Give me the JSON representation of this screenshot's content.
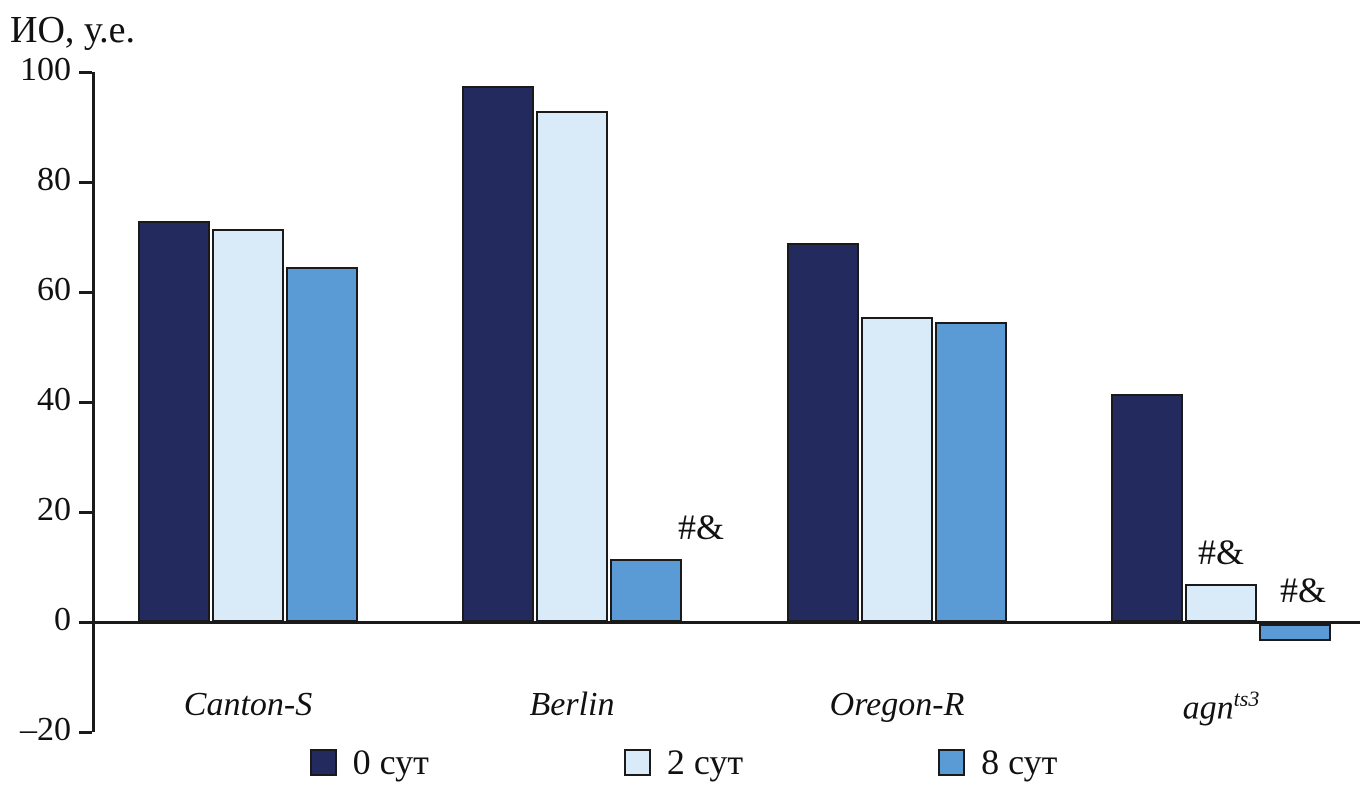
{
  "title": "ИО, у.е.",
  "chart_data": {
    "type": "bar",
    "title": "",
    "ylabel": "ИО, у.е.",
    "xlabel": "",
    "ylim": [
      -20,
      100
    ],
    "grid": false,
    "legend_position": "bottom",
    "yticks": [
      {
        "v": 100,
        "label": "100"
      },
      {
        "v": 80,
        "label": "80"
      },
      {
        "v": 60,
        "label": "60"
      },
      {
        "v": 40,
        "label": "40"
      },
      {
        "v": 20,
        "label": "20"
      },
      {
        "v": 0,
        "label": "0"
      },
      {
        "v": -20,
        "label": "–20"
      }
    ],
    "categories": [
      "Canton-S",
      "Berlin",
      "Oregon-R",
      "agn^ts3"
    ],
    "category_display": [
      {
        "text": "Canton-S",
        "sup": ""
      },
      {
        "text": "Berlin",
        "sup": ""
      },
      {
        "text": "Oregon-R",
        "sup": ""
      },
      {
        "text": "agn",
        "sup": "ts3"
      }
    ],
    "series": [
      {
        "name": "0 сут",
        "color": "#222a5e",
        "values": [
          73,
          97.5,
          69,
          41.5
        ]
      },
      {
        "name": "2 сут",
        "color": "#d9eaf8",
        "values": [
          71.5,
          93,
          55.5,
          7
        ]
      },
      {
        "name": "8 сут",
        "color": "#5b9bd5",
        "values": [
          64.5,
          11.5,
          54.5,
          -3
        ]
      }
    ],
    "annotations": [
      {
        "series": 2,
        "category": 1,
        "text": "#&",
        "dx": 55
      },
      {
        "series": 1,
        "category": 3,
        "text": "#&",
        "dx": 0
      },
      {
        "series": 2,
        "category": 3,
        "text": "#&",
        "dx": 8
      }
    ]
  }
}
